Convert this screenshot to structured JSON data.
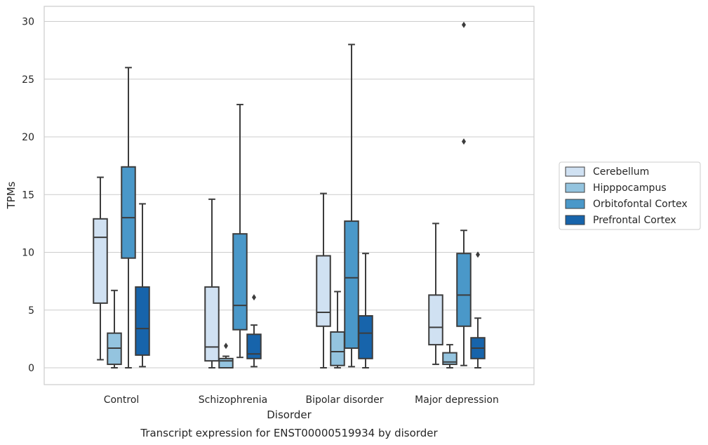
{
  "chart_data": {
    "type": "box",
    "title": "",
    "caption": "Transcript expression for ENST00000519934 by disorder",
    "xlabel": "Disorder",
    "ylabel": "TPMs",
    "ylim": [
      -1.4,
      31.3
    ],
    "yticks": [
      0,
      5,
      10,
      15,
      20,
      25,
      30
    ],
    "grid": true,
    "legend_position": "right",
    "categories": [
      "Control",
      "Schizophrenia",
      "Bipolar disorder",
      "Major depression"
    ],
    "series": [
      {
        "name": "Cerebellum",
        "color": "#d0e1f2",
        "boxes": [
          {
            "whisker_low": 0.7,
            "q1": 5.6,
            "median": 11.3,
            "q3": 12.9,
            "whisker_high": 16.5,
            "outliers": []
          },
          {
            "whisker_low": 0.0,
            "q1": 0.6,
            "median": 1.8,
            "q3": 7.0,
            "whisker_high": 14.6,
            "outliers": []
          },
          {
            "whisker_low": 0.0,
            "q1": 3.6,
            "median": 4.8,
            "q3": 9.7,
            "whisker_high": 15.1,
            "outliers": []
          },
          {
            "whisker_low": 0.3,
            "q1": 2.0,
            "median": 3.5,
            "q3": 6.3,
            "whisker_high": 12.5,
            "outliers": []
          }
        ]
      },
      {
        "name": "Hipppocampus",
        "color": "#94c4df",
        "boxes": [
          {
            "whisker_low": 0.0,
            "q1": 0.3,
            "median": 1.7,
            "q3": 3.0,
            "whisker_high": 6.7,
            "outliers": []
          },
          {
            "whisker_low": 0.0,
            "q1": 0.0,
            "median": 0.6,
            "q3": 0.8,
            "whisker_high": 1.0,
            "outliers": [
              1.9
            ]
          },
          {
            "whisker_low": 0.0,
            "q1": 0.2,
            "median": 1.4,
            "q3": 3.1,
            "whisker_high": 6.6,
            "outliers": []
          },
          {
            "whisker_low": 0.0,
            "q1": 0.3,
            "median": 0.5,
            "q3": 1.3,
            "whisker_high": 2.0,
            "outliers": []
          }
        ]
      },
      {
        "name": "Orbitofontal Cortex",
        "color": "#4a98c9",
        "boxes": [
          {
            "whisker_low": 0.0,
            "q1": 9.5,
            "median": 13.0,
            "q3": 17.4,
            "whisker_high": 26.0,
            "outliers": []
          },
          {
            "whisker_low": 0.9,
            "q1": 3.3,
            "median": 5.4,
            "q3": 11.6,
            "whisker_high": 22.8,
            "outliers": []
          },
          {
            "whisker_low": 0.1,
            "q1": 1.7,
            "median": 7.8,
            "q3": 12.7,
            "whisker_high": 28.0,
            "outliers": []
          },
          {
            "whisker_low": 0.2,
            "q1": 3.6,
            "median": 6.3,
            "q3": 9.9,
            "whisker_high": 11.9,
            "outliers": [
              19.6,
              29.7
            ]
          }
        ]
      },
      {
        "name": "Prefrontal Cortex",
        "color": "#1764ab",
        "boxes": [
          {
            "whisker_low": 0.1,
            "q1": 1.1,
            "median": 3.4,
            "q3": 7.0,
            "whisker_high": 14.2,
            "outliers": []
          },
          {
            "whisker_low": 0.1,
            "q1": 0.8,
            "median": 1.2,
            "q3": 2.9,
            "whisker_high": 3.7,
            "outliers": [
              6.1
            ]
          },
          {
            "whisker_low": 0.0,
            "q1": 0.8,
            "median": 3.0,
            "q3": 4.5,
            "whisker_high": 9.9,
            "outliers": []
          },
          {
            "whisker_low": 0.0,
            "q1": 0.8,
            "median": 1.7,
            "q3": 2.6,
            "whisker_high": 4.3,
            "outliers": [
              9.8
            ]
          }
        ]
      }
    ]
  }
}
